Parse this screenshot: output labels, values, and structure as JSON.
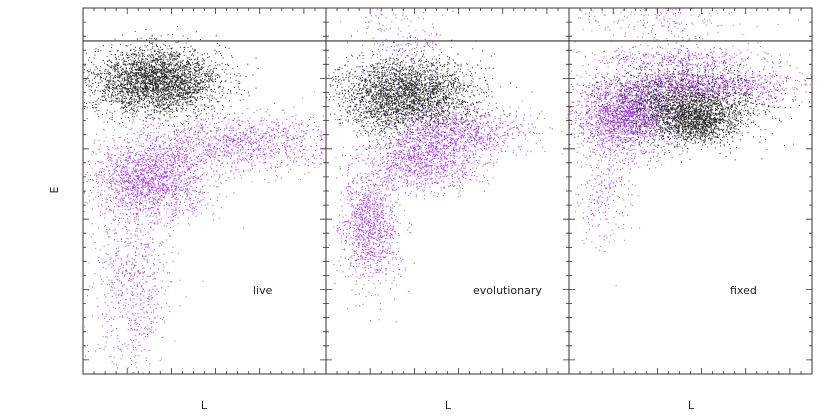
{
  "figure": {
    "ylabel": "E",
    "colors": {
      "background": "#ffffff",
      "axis": "#333333",
      "dark_series": "#111111",
      "light_series": "#a020f0"
    }
  },
  "chart_data": [
    {
      "type": "scatter",
      "panel_label": "live",
      "xlabel": "L",
      "ylabel": "E",
      "xlim": [
        0,
        1
      ],
      "ylim": [
        0,
        1
      ],
      "reference_line_y": 0.91,
      "series": [
        {
          "color": "#111111",
          "clusters": [
            {
              "cx": 0.3,
              "cy": 0.8,
              "sx": 0.13,
              "sy": 0.045,
              "n": 3200
            }
          ]
        },
        {
          "color": "#a020f0",
          "clusters": [
            {
              "cx": 0.28,
              "cy": 0.53,
              "sx": 0.12,
              "sy": 0.05,
              "n": 1700
            },
            {
              "cx": 0.62,
              "cy": 0.63,
              "sx": 0.22,
              "sy": 0.04,
              "n": 1200
            },
            {
              "cx": 0.2,
              "cy": 0.25,
              "sx": 0.08,
              "sy": 0.12,
              "n": 700
            }
          ]
        }
      ]
    },
    {
      "type": "scatter",
      "panel_label": "evolutionary",
      "xlabel": "L",
      "ylabel": "E",
      "xlim": [
        0,
        1
      ],
      "ylim": [
        0,
        1
      ],
      "reference_line_y": 0.91,
      "series": [
        {
          "color": "#111111",
          "clusters": [
            {
              "cx": 0.32,
              "cy": 0.76,
              "sx": 0.14,
              "sy": 0.05,
              "n": 3000
            }
          ]
        },
        {
          "color": "#a020f0",
          "clusters": [
            {
              "cx": 0.18,
              "cy": 0.4,
              "sx": 0.06,
              "sy": 0.08,
              "n": 1100
            },
            {
              "cx": 0.4,
              "cy": 0.58,
              "sx": 0.12,
              "sy": 0.04,
              "n": 1100
            },
            {
              "cx": 0.55,
              "cy": 0.66,
              "sx": 0.14,
              "sy": 0.03,
              "n": 800
            },
            {
              "cx": 0.3,
              "cy": 0.88,
              "sx": 0.12,
              "sy": 0.08,
              "n": 250
            }
          ]
        }
      ]
    },
    {
      "type": "scatter",
      "panel_label": "fixed",
      "xlabel": "L",
      "ylabel": "E",
      "xlim": [
        0,
        1
      ],
      "ylim": [
        0,
        1
      ],
      "reference_line_y": 0.91,
      "series": [
        {
          "color": "#111111",
          "clusters": [
            {
              "cx": 0.45,
              "cy": 0.73,
              "sx": 0.16,
              "sy": 0.05,
              "n": 2600
            },
            {
              "cx": 0.53,
              "cy": 0.69,
              "sx": 0.07,
              "sy": 0.03,
              "n": 900
            }
          ]
        },
        {
          "color": "#a020f0",
          "clusters": [
            {
              "cx": 0.22,
              "cy": 0.7,
              "sx": 0.1,
              "sy": 0.05,
              "n": 1600
            },
            {
              "cx": 0.55,
              "cy": 0.79,
              "sx": 0.22,
              "sy": 0.025,
              "n": 1000
            },
            {
              "cx": 0.45,
              "cy": 0.86,
              "sx": 0.18,
              "sy": 0.015,
              "n": 350
            },
            {
              "cx": 0.4,
              "cy": 0.96,
              "sx": 0.18,
              "sy": 0.04,
              "n": 250
            },
            {
              "cx": 0.15,
              "cy": 0.5,
              "sx": 0.06,
              "sy": 0.08,
              "n": 250
            }
          ]
        }
      ]
    }
  ]
}
